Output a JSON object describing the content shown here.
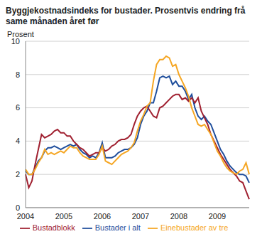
{
  "chart_data": {
    "type": "line",
    "title": "Byggjekostnadsindeks for bustader. Prosentvis endring frå same månaden året før",
    "y_label": "Prosent",
    "categories": [
      "2004",
      null,
      null,
      null,
      null,
      null,
      null,
      null,
      null,
      null,
      null,
      null,
      "2005",
      null,
      null,
      null,
      null,
      null,
      null,
      null,
      null,
      null,
      null,
      null,
      "2006",
      null,
      null,
      null,
      null,
      null,
      null,
      null,
      null,
      null,
      null,
      null,
      "2007",
      null,
      null,
      null,
      null,
      null,
      null,
      null,
      null,
      null,
      null,
      null,
      "2008",
      null,
      null,
      null,
      null,
      null,
      null,
      null,
      null,
      null,
      null,
      null,
      "2009",
      null,
      null,
      null,
      null,
      null,
      null,
      null,
      null,
      null,
      null
    ],
    "series": [
      {
        "name": "Bustader i alt",
        "color": "#1f4e9c",
        "values": [
          2.2,
          2.0,
          2.0,
          2.4,
          2.8,
          3.0,
          3.4,
          3.6,
          3.6,
          3.7,
          3.6,
          3.5,
          3.6,
          3.7,
          3.8,
          3.7,
          3.8,
          3.5,
          3.3,
          3.2,
          3.0,
          3.1,
          3.0,
          3.3,
          3.9,
          3.0,
          3.0,
          3.0,
          3.1,
          3.3,
          3.4,
          3.5,
          3.5,
          3.6,
          3.8,
          4.2,
          5.0,
          5.5,
          5.8,
          6.3,
          6.3,
          7.0,
          7.8,
          7.9,
          7.8,
          7.9,
          7.4,
          7.6,
          7.3,
          7.3,
          7.0,
          6.5,
          6.8,
          6.0,
          5.5,
          5.3,
          5.5,
          5.2,
          5.0,
          4.5,
          4.0,
          3.5,
          3.2,
          2.8,
          2.5,
          2.3,
          2.1,
          2.0,
          2.0,
          1.9,
          1.5
        ]
      },
      {
        "name": "Bustadblokk",
        "color": "#a02030",
        "values": [
          2.0,
          1.2,
          1.6,
          2.6,
          3.5,
          4.4,
          4.2,
          4.3,
          4.4,
          4.6,
          4.7,
          4.5,
          4.5,
          4.3,
          4.3,
          4.0,
          3.8,
          3.6,
          3.5,
          3.3,
          3.1,
          3.2,
          3.3,
          3.3,
          3.6,
          3.4,
          3.5,
          3.7,
          3.8,
          4.0,
          4.1,
          4.1,
          4.2,
          4.4,
          5.0,
          5.5,
          5.8,
          6.0,
          6.1,
          5.8,
          5.5,
          5.4,
          6.0,
          6.1,
          6.3,
          6.5,
          6.7,
          6.8,
          6.8,
          6.5,
          6.6,
          6.4,
          6.6,
          6.3,
          6.6,
          5.8,
          5.4,
          5.0,
          4.4,
          4.0,
          3.6,
          3.2,
          2.9,
          2.6,
          2.3,
          2.1,
          1.9,
          1.6,
          1.5,
          1.0,
          0.5
        ]
      },
      {
        "name": "Einebustader av tre",
        "color": "#f5a623",
        "values": [
          2.3,
          2.0,
          2.0,
          2.3,
          2.7,
          3.0,
          3.5,
          3.2,
          3.3,
          3.2,
          3.3,
          3.4,
          3.3,
          3.5,
          3.7,
          3.6,
          3.6,
          3.3,
          3.1,
          3.0,
          2.9,
          2.9,
          2.9,
          3.2,
          3.7,
          2.8,
          2.7,
          2.6,
          2.8,
          3.0,
          3.2,
          3.3,
          3.4,
          3.6,
          3.9,
          4.6,
          5.2,
          5.6,
          6.1,
          6.3,
          7.6,
          8.6,
          8.9,
          8.9,
          9.1,
          9.0,
          8.5,
          8.6,
          8.0,
          7.6,
          7.2,
          6.7,
          6.0,
          5.5,
          5.0,
          4.9,
          5.0,
          4.7,
          4.4,
          3.9,
          3.4,
          3.1,
          2.7,
          2.4,
          2.2,
          2.1,
          2.0,
          2.2,
          2.3,
          2.7,
          2.0
        ]
      }
    ],
    "ylim": [
      0,
      10
    ],
    "yticks": [
      0,
      2,
      4,
      6,
      8,
      10
    ],
    "grid": true,
    "legend": "bottom"
  }
}
